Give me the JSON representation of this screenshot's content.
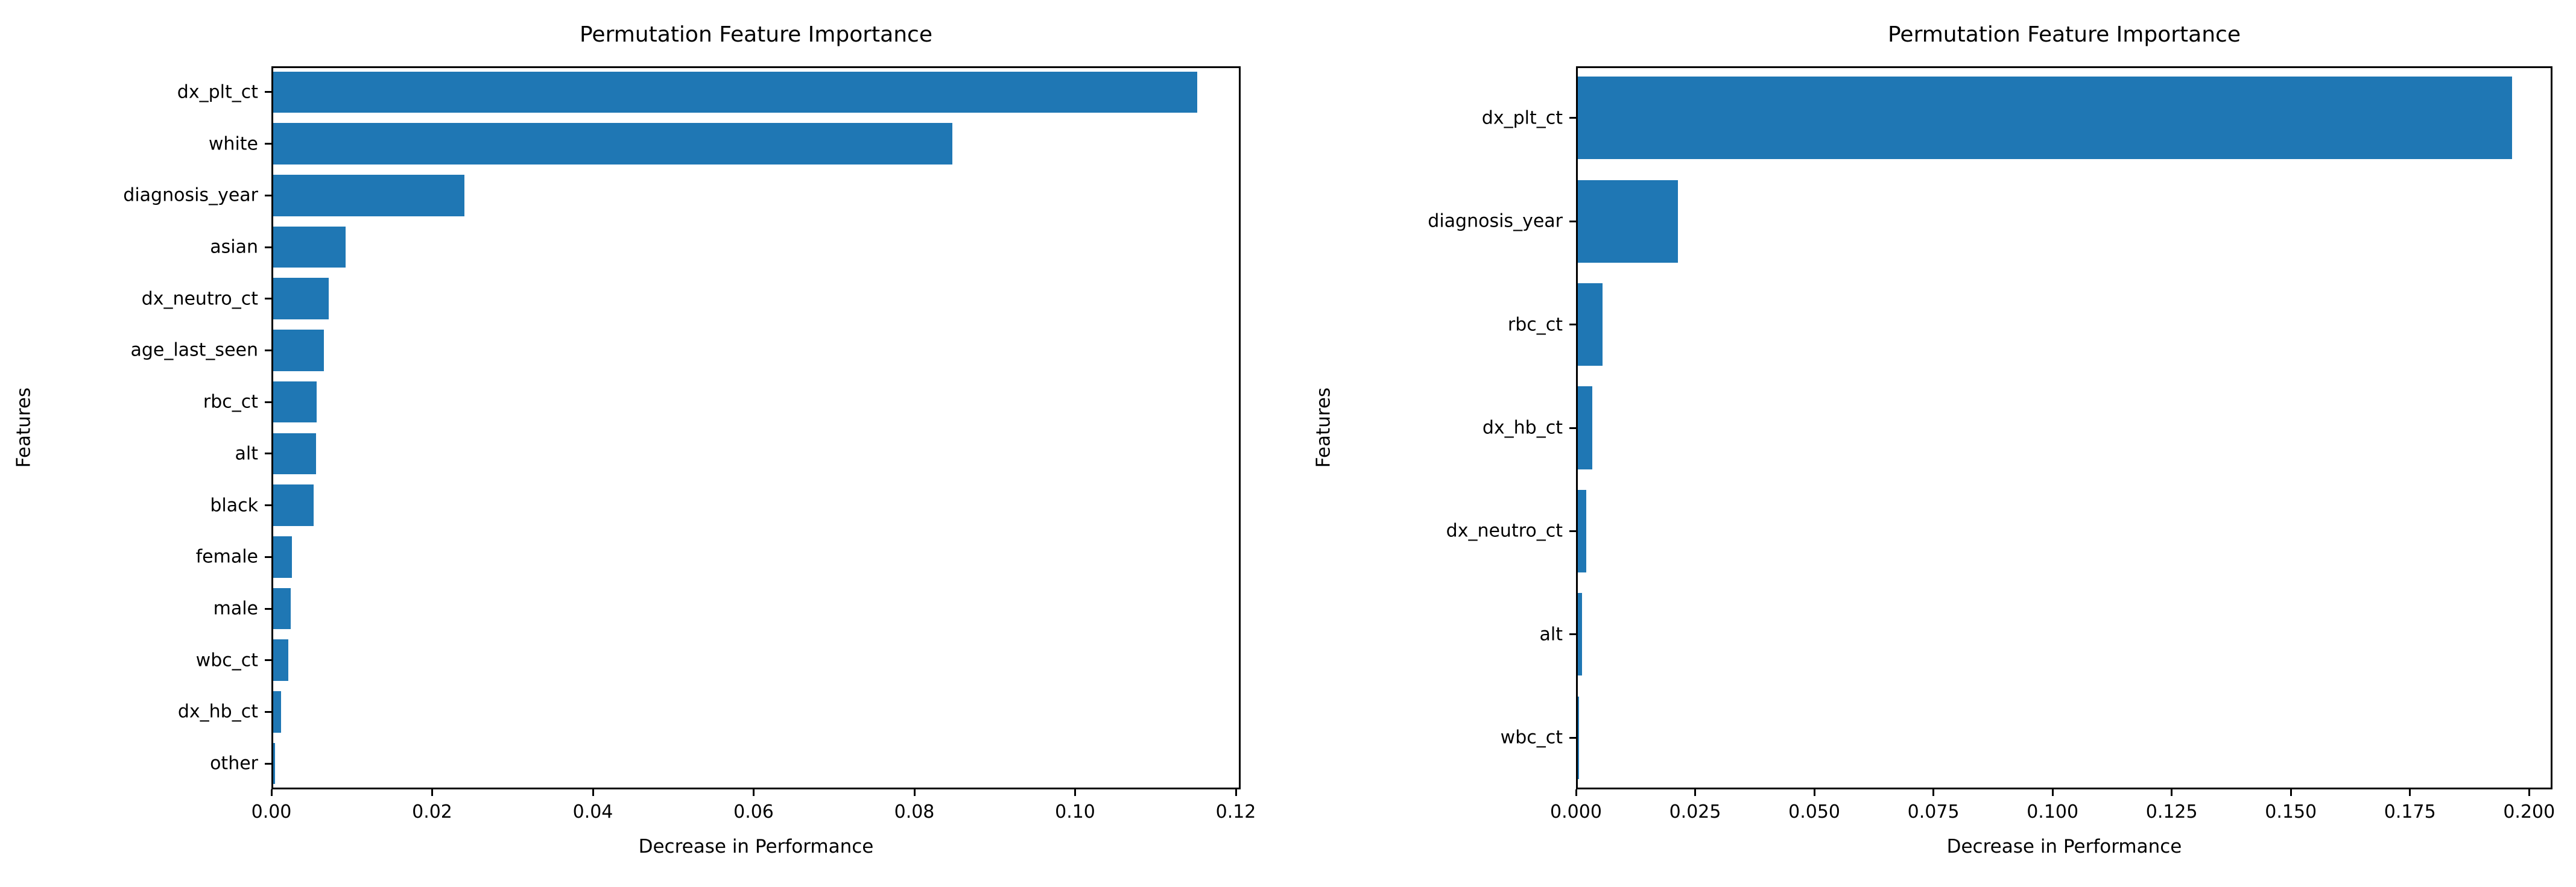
{
  "chart_data": [
    {
      "type": "bar",
      "orientation": "horizontal",
      "title": "Permutation Feature Importance",
      "xlabel": "Decrease in Performance",
      "ylabel": "Features",
      "bar_color": "#1f77b4",
      "axis_color": "#000000",
      "text_color": "#000000",
      "grid": false,
      "legend": null,
      "categories": [
        "dx_plt_ct",
        "white",
        "diagnosis_year",
        "asian",
        "dx_neutro_ct",
        "age_last_seen",
        "rbc_ct",
        "alt",
        "black",
        "female",
        "male",
        "wbc_ct",
        "dx_hb_ct",
        "other"
      ],
      "values": [
        0.115,
        0.0845,
        0.0238,
        0.009,
        0.0069,
        0.0063,
        0.0054,
        0.0053,
        0.005,
        0.0023,
        0.0022,
        0.0019,
        0.001,
        0.0002
      ],
      "xlim": [
        0,
        0.1206
      ],
      "xticks": [
        0.0,
        0.02,
        0.04,
        0.06,
        0.08,
        0.1,
        0.12
      ],
      "xtick_labels": [
        "0.00",
        "0.02",
        "0.04",
        "0.06",
        "0.08",
        "0.10",
        "0.12"
      ]
    },
    {
      "type": "bar",
      "orientation": "horizontal",
      "title": "Permutation Feature Importance",
      "xlabel": "Decrease in Performance",
      "ylabel": "Features",
      "bar_color": "#1f77b4",
      "axis_color": "#000000",
      "text_color": "#000000",
      "grid": false,
      "legend": null,
      "categories": [
        "dx_plt_ct",
        "diagnosis_year",
        "rbc_ct",
        "dx_hb_ct",
        "dx_neutro_ct",
        "alt",
        "wbc_ct"
      ],
      "values": [
        0.196,
        0.021,
        0.0052,
        0.003,
        0.0018,
        0.0009,
        0.0002
      ],
      "xlim": [
        0,
        0.2049
      ],
      "xticks": [
        0.0,
        0.025,
        0.05,
        0.075,
        0.1,
        0.125,
        0.15,
        0.175,
        0.2
      ],
      "xtick_labels": [
        "0.000",
        "0.025",
        "0.050",
        "0.075",
        "0.100",
        "0.125",
        "0.150",
        "0.175",
        "0.200"
      ]
    }
  ]
}
